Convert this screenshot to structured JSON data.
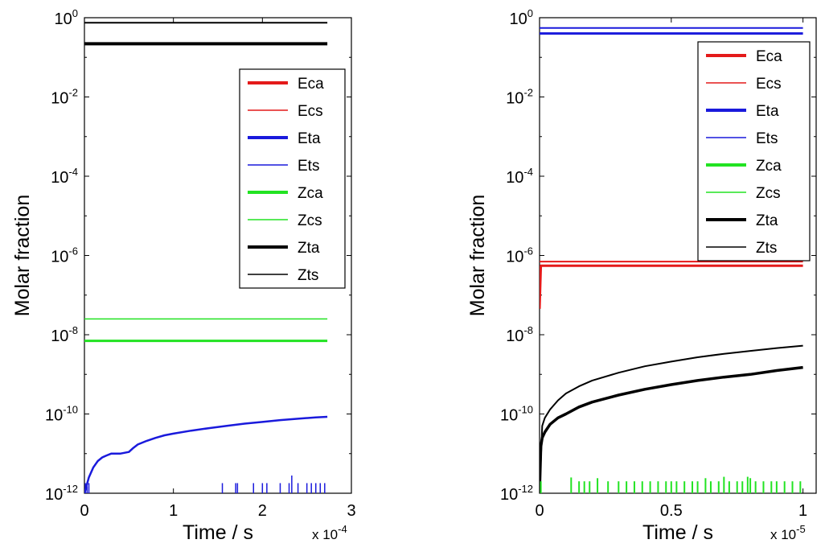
{
  "chart_data": [
    {
      "type": "line",
      "xlabel": "Time / s",
      "ylabel": "Molar fraction",
      "x_multiplier": {
        "base": "x 10",
        "exp": "-4"
      },
      "xlim": [
        0,
        3
      ],
      "xticks": [
        "0",
        "1",
        "2",
        "3"
      ],
      "ylim_log10": [
        -12,
        0
      ],
      "yscale": "log",
      "yticks": [
        {
          "base": "10",
          "exp": "0"
        },
        {
          "base": "10",
          "exp": "-2"
        },
        {
          "base": "10",
          "exp": "-4"
        },
        {
          "base": "10",
          "exp": "-6"
        },
        {
          "base": "10",
          "exp": "-8"
        },
        {
          "base": "10",
          "exp": "-10"
        },
        {
          "base": "10",
          "exp": "-12"
        }
      ],
      "legend_position": "top-right",
      "legend": [
        {
          "name": "Eca",
          "color": "#e41a1a",
          "style": "thick"
        },
        {
          "name": "Ecs",
          "color": "#e41a1a",
          "style": "thin"
        },
        {
          "name": "Eta",
          "color": "#1a1adc",
          "style": "thick"
        },
        {
          "name": "Ets",
          "color": "#1a1adc",
          "style": "thin"
        },
        {
          "name": "Zca",
          "color": "#22e322",
          "style": "thick"
        },
        {
          "name": "Zcs",
          "color": "#22e322",
          "style": "thin"
        },
        {
          "name": "Zta",
          "color": "#000000",
          "style": "thick"
        },
        {
          "name": "Zts",
          "color": "#000000",
          "style": "thin"
        }
      ],
      "series": [
        {
          "name": "Zts",
          "color": "#000000",
          "width": 2,
          "x": [
            0,
            2.73
          ],
          "y": [
            0.75,
            0.75
          ]
        },
        {
          "name": "Zta",
          "color": "#000000",
          "width": 4,
          "x": [
            0,
            2.73
          ],
          "y": [
            0.22,
            0.22
          ]
        },
        {
          "name": "Zcs",
          "color": "#22e322",
          "width": 1.5,
          "x": [
            0,
            2.73
          ],
          "y": [
            2.5e-08,
            2.5e-08
          ]
        },
        {
          "name": "Zca",
          "color": "#22e322",
          "width": 3,
          "x": [
            0,
            2.73
          ],
          "y": [
            7e-09,
            7e-09
          ]
        },
        {
          "name": "Eta",
          "color": "#1a1adc",
          "width": 2.5,
          "x": [
            0,
            0.05,
            0.1,
            0.15,
            0.2,
            0.25,
            0.3,
            0.4,
            0.5,
            0.55,
            0.6,
            0.7,
            0.8,
            0.9,
            1.0,
            1.2,
            1.4,
            1.6,
            1.8,
            2.0,
            2.2,
            2.4,
            2.6,
            2.73
          ],
          "y": [
            1e-12,
            2.5e-12,
            4.5e-12,
            6.5e-12,
            8e-12,
            9e-12,
            1e-11,
            1e-11,
            1.1e-11,
            1.4e-11,
            1.7e-11,
            2.1e-11,
            2.5e-11,
            2.9e-11,
            3.2e-11,
            3.8e-11,
            4.4e-11,
            5e-11,
            5.7e-11,
            6.3e-11,
            7e-11,
            7.6e-11,
            8.2e-11,
            8.5e-11
          ]
        },
        {
          "name": "Eta-noise",
          "color": "#1a1adc",
          "width": 1.5,
          "spikes": true,
          "x": [
            0.01,
            0.03,
            0.05,
            1.55,
            1.7,
            1.72,
            1.9,
            2.0,
            2.05,
            2.2,
            2.3,
            2.33,
            2.4,
            2.5,
            2.55,
            2.6,
            2.65,
            2.7
          ],
          "y": [
            1.8e-12,
            1.5e-12,
            1.8e-12,
            1.8e-12,
            1.8e-12,
            1.8e-12,
            1.8e-12,
            1.8e-12,
            1.8e-12,
            1.8e-12,
            1.8e-12,
            2.8e-12,
            1.8e-12,
            1.8e-12,
            1.8e-12,
            1.8e-12,
            1.8e-12,
            1.8e-12
          ]
        }
      ]
    },
    {
      "type": "line",
      "xlabel": "Time / s",
      "ylabel": "Molar fraction",
      "x_multiplier": {
        "base": "x 10",
        "exp": "-5"
      },
      "xlim": [
        0,
        1.05
      ],
      "xticks": [
        "0",
        "0.5",
        "1"
      ],
      "xtick_values": [
        0,
        0.5,
        1
      ],
      "ylim_log10": [
        -12,
        0
      ],
      "yscale": "log",
      "yticks": [
        {
          "base": "10",
          "exp": "0"
        },
        {
          "base": "10",
          "exp": "-2"
        },
        {
          "base": "10",
          "exp": "-4"
        },
        {
          "base": "10",
          "exp": "-6"
        },
        {
          "base": "10",
          "exp": "-8"
        },
        {
          "base": "10",
          "exp": "-10"
        },
        {
          "base": "10",
          "exp": "-12"
        }
      ],
      "legend_position": "top-right",
      "legend": [
        {
          "name": "Eca",
          "color": "#e41a1a",
          "style": "thick"
        },
        {
          "name": "Ecs",
          "color": "#e41a1a",
          "style": "thin"
        },
        {
          "name": "Eta",
          "color": "#1a1adc",
          "style": "thick"
        },
        {
          "name": "Ets",
          "color": "#1a1adc",
          "style": "thin"
        },
        {
          "name": "Zca",
          "color": "#22e322",
          "style": "thick"
        },
        {
          "name": "Zcs",
          "color": "#22e322",
          "style": "thin"
        },
        {
          "name": "Zta",
          "color": "#000000",
          "style": "thick"
        },
        {
          "name": "Zts",
          "color": "#000000",
          "style": "thin"
        }
      ],
      "series": [
        {
          "name": "Ets",
          "color": "#1a1adc",
          "width": 2,
          "x": [
            0,
            1
          ],
          "y": [
            0.55,
            0.55
          ]
        },
        {
          "name": "Eta",
          "color": "#1a1adc",
          "width": 3,
          "x": [
            0,
            1
          ],
          "y": [
            0.4,
            0.4
          ]
        },
        {
          "name": "Ecs",
          "color": "#e41a1a",
          "width": 2,
          "x": [
            0,
            0.005,
            1
          ],
          "y": [
            7e-07,
            7e-07,
            7e-07
          ]
        },
        {
          "name": "Eca",
          "color": "#e41a1a",
          "width": 3,
          "x": [
            0,
            0.005,
            1
          ],
          "y": [
            4.5e-08,
            5.5e-07,
            5.5e-07
          ]
        },
        {
          "name": "Zts",
          "color": "#000000",
          "width": 2,
          "x": [
            0,
            0.01,
            0.02,
            0.04,
            0.07,
            0.1,
            0.15,
            0.2,
            0.3,
            0.4,
            0.5,
            0.6,
            0.7,
            0.8,
            0.9,
            1.0
          ],
          "y": [
            1e-12,
            5e-11,
            8e-11,
            1.3e-10,
            2.2e-10,
            3.3e-10,
            5e-10,
            7e-10,
            1.1e-09,
            1.6e-09,
            2.1e-09,
            2.7e-09,
            3.3e-09,
            3.9e-09,
            4.6e-09,
            5.3e-09
          ]
        },
        {
          "name": "Zta",
          "color": "#000000",
          "width": 3.5,
          "x": [
            0,
            0.005,
            0.01,
            0.02,
            0.04,
            0.07,
            0.1,
            0.15,
            0.2,
            0.3,
            0.4,
            0.5,
            0.6,
            0.7,
            0.8,
            0.9,
            1.0
          ],
          "y": [
            1e-12,
            1.5e-11,
            2.5e-11,
            3.5e-11,
            5.5e-11,
            8e-11,
            1e-10,
            1.5e-10,
            2e-10,
            3e-10,
            4.2e-10,
            5.5e-10,
            7e-10,
            8.5e-10,
            1e-09,
            1.25e-09,
            1.5e-09
          ]
        },
        {
          "name": "Zca-noise",
          "color": "#22e322",
          "width": 2,
          "spikes": true,
          "x": [
            0.005,
            0.12,
            0.15,
            0.17,
            0.19,
            0.22,
            0.26,
            0.3,
            0.33,
            0.36,
            0.39,
            0.42,
            0.45,
            0.48,
            0.5,
            0.52,
            0.55,
            0.58,
            0.6,
            0.63,
            0.65,
            0.68,
            0.7,
            0.72,
            0.75,
            0.77,
            0.79,
            0.8,
            0.82,
            0.85,
            0.88,
            0.9,
            0.93,
            0.96,
            0.99
          ],
          "y": [
            2e-12,
            2.5e-12,
            2e-12,
            2e-12,
            2e-12,
            2.4e-12,
            2e-12,
            2e-12,
            2e-12,
            2e-12,
            2e-12,
            2e-12,
            2e-12,
            2e-12,
            2e-12,
            2e-12,
            2e-12,
            2e-12,
            2e-12,
            2.4e-12,
            2e-12,
            2e-12,
            2.6e-12,
            2e-12,
            2e-12,
            2e-12,
            2.6e-12,
            2.4e-12,
            2e-12,
            2e-12,
            2e-12,
            2e-12,
            2e-12,
            2e-12,
            2e-12
          ]
        }
      ]
    }
  ]
}
